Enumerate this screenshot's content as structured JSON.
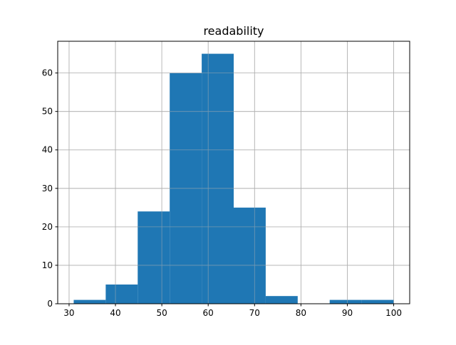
{
  "chart_data": {
    "type": "bar",
    "title": "readability",
    "xlabel": "",
    "ylabel": "",
    "bin_edges": [
      31,
      37.9,
      44.8,
      51.7,
      58.6,
      65.5,
      72.4,
      79.3,
      86.2,
      93.1,
      100
    ],
    "values": [
      1,
      5,
      24,
      60,
      65,
      25,
      2,
      0,
      1,
      1
    ],
    "xlim": [
      27.55,
      103.45
    ],
    "ylim": [
      0,
      68.25
    ],
    "xticks": [
      30,
      40,
      50,
      60,
      70,
      80,
      90,
      100
    ],
    "yticks": [
      0,
      10,
      20,
      30,
      40,
      50,
      60
    ],
    "grid": true,
    "bar_color": "#1f77b4",
    "grid_color": "#b0b0b0"
  }
}
